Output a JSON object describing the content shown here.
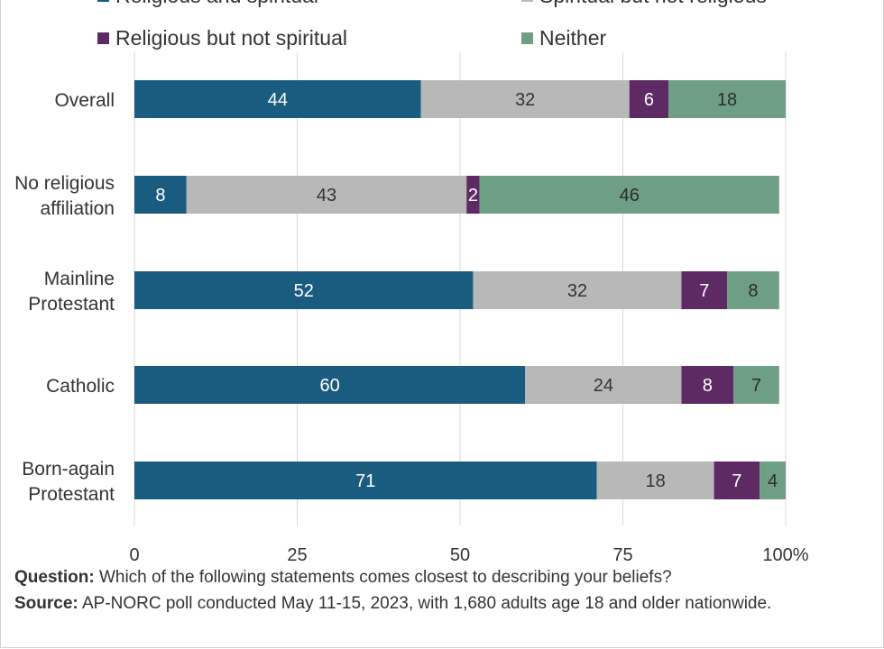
{
  "colors": {
    "religious_and_spiritual": "#1a5c80",
    "spiritual_not_religious": "#b8b8b8",
    "religious_not_spiritual": "#5e2a64",
    "neither": "#6e9f84",
    "grid": "#d9d9d9",
    "text": "#333333"
  },
  "chart_data": {
    "type": "bar",
    "orientation": "horizontal",
    "stacked": true,
    "categories": [
      "Overall",
      "No religious affiliation",
      "Mainline Protestant",
      "Catholic",
      "Born-again Protestant"
    ],
    "series": [
      {
        "name": "Religious and spiritual",
        "values": [
          44,
          8,
          52,
          60,
          71
        ]
      },
      {
        "name": "Spiritual but not religious",
        "values": [
          32,
          43,
          32,
          24,
          18
        ]
      },
      {
        "name": "Religious but not spiritual",
        "values": [
          6,
          2,
          7,
          8,
          7
        ]
      },
      {
        "name": "Neither",
        "values": [
          18,
          46,
          8,
          7,
          4
        ]
      }
    ],
    "x_ticks": [
      "0",
      "25",
      "50",
      "75",
      "100%"
    ],
    "xlim": [
      0,
      100
    ],
    "grid": true,
    "legend_position": "top"
  },
  "footer": {
    "question_label": "Question:",
    "question_text": " Which of the following statements comes closest to describing your beliefs?",
    "source_label": "Source:",
    "source_text": " AP-NORC poll conducted May 11-15, 2023, with 1,680 adults age 18 and older nationwide."
  }
}
